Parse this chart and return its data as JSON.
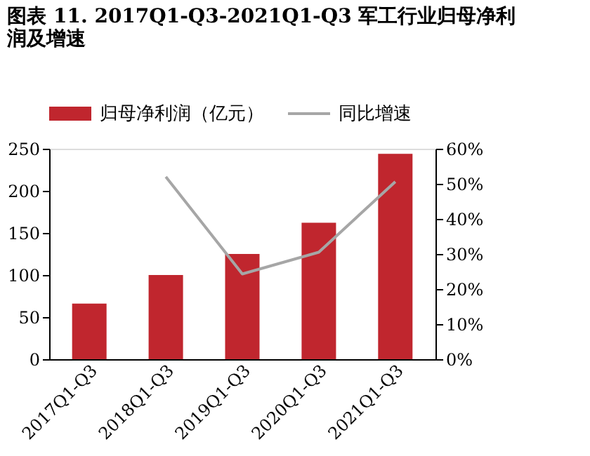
{
  "chart_data": {
    "type": "bar",
    "title": [
      "图表 11. 2017Q1-Q3-2021Q1-Q3 军工行业归母净利",
      "润及增速"
    ],
    "categories": [
      "2017Q1-Q3",
      "2018Q1-Q3",
      "2019Q1-Q3",
      "2020Q1-Q3",
      "2021Q1-Q3"
    ],
    "series": [
      {
        "name": "归母净利润（亿元）",
        "color": "#c0262e",
        "values": [
          66,
          100,
          125,
          162,
          244
        ]
      },
      {
        "name": "同比增速",
        "type": "line",
        "axis": "y2",
        "color": "#a6a6a6",
        "values": [
          null,
          52,
          24.3,
          30.5,
          50.6
        ]
      }
    ],
    "ylim": [
      0,
      250
    ],
    "yticks": [
      0,
      50,
      100,
      150,
      200,
      250
    ],
    "y2lim": [
      0,
      60
    ],
    "y2ticks": [
      {
        "value": 0,
        "label": "0%"
      },
      {
        "value": 10,
        "label": "10%"
      },
      {
        "value": 20,
        "label": "20%"
      },
      {
        "value": 30,
        "label": "30%"
      },
      {
        "value": 40,
        "label": "40%"
      },
      {
        "value": 50,
        "label": "50%"
      },
      {
        "value": 60,
        "label": "60%"
      }
    ],
    "legend": "top",
    "grid": false
  }
}
